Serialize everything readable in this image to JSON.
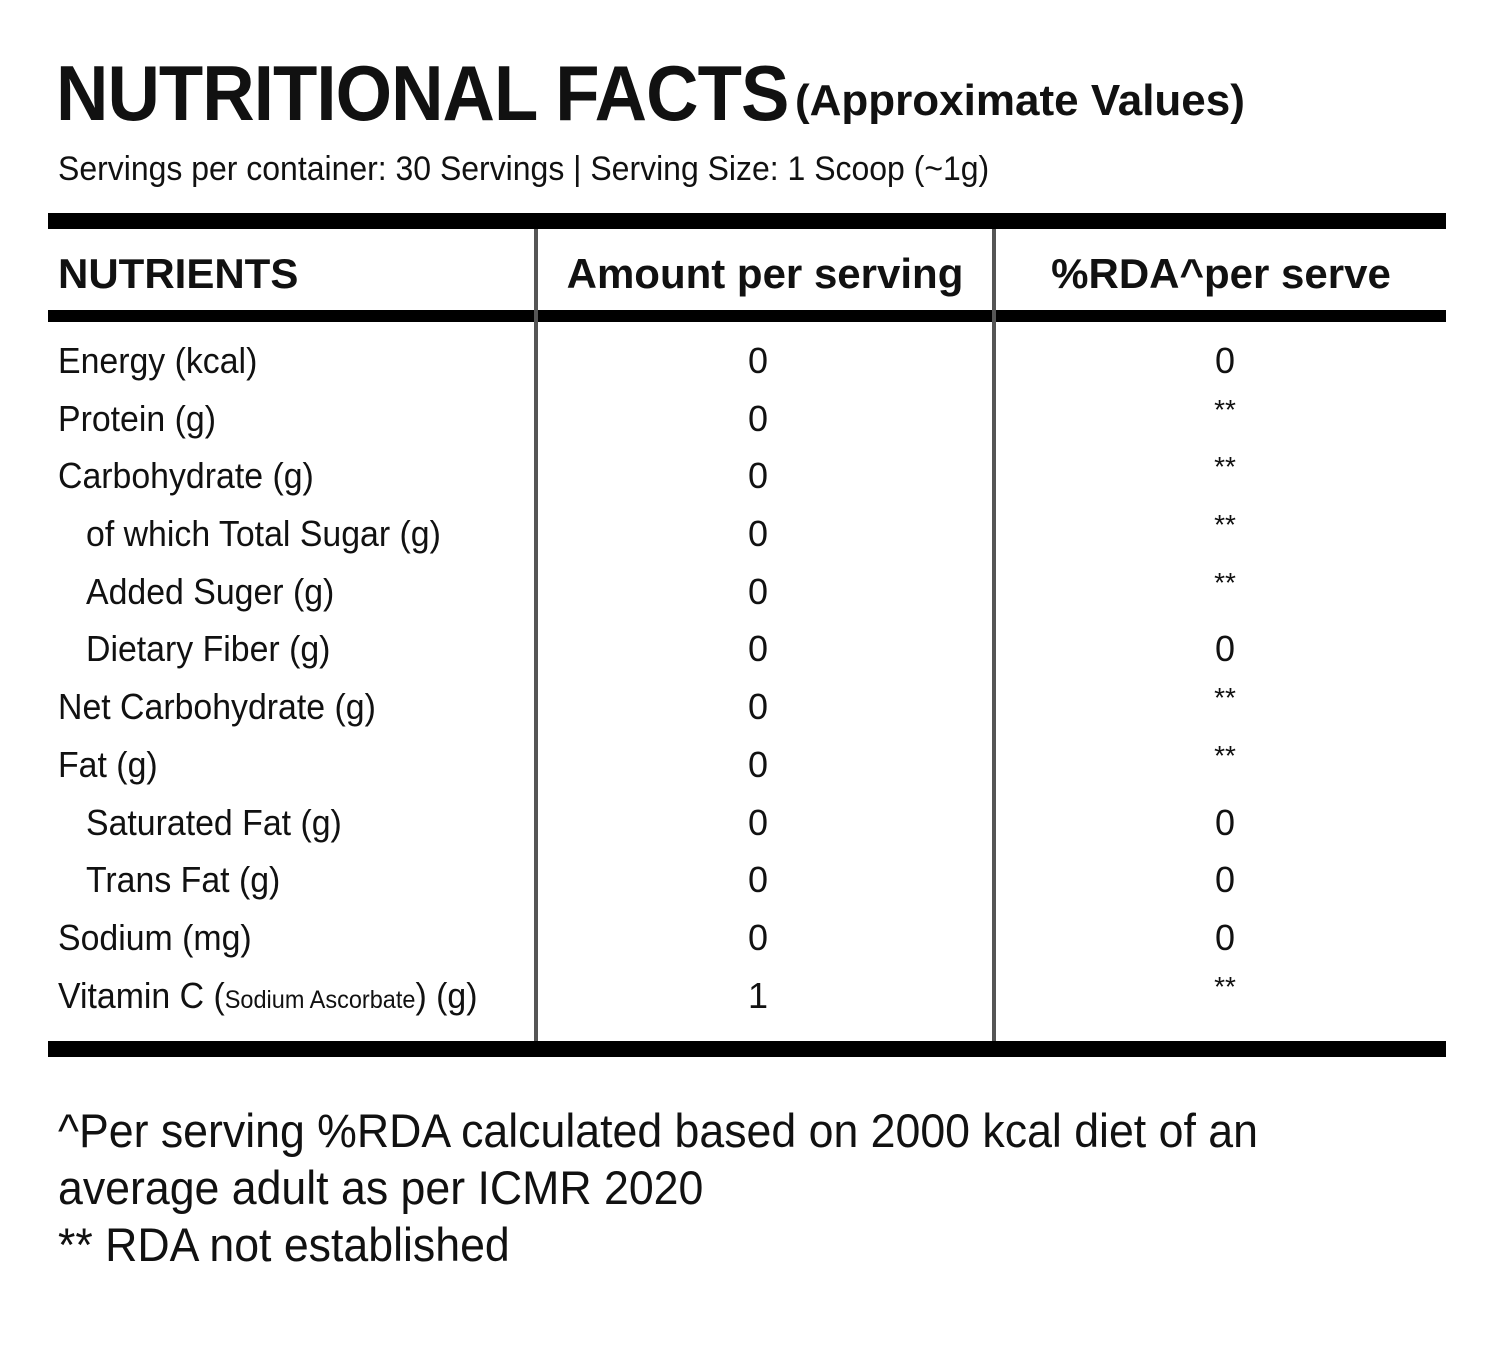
{
  "title": {
    "main": "NUTRITIONAL FACTS",
    "sub": "(Approximate Values)"
  },
  "servings_line": "Servings per container: 30 Servings | Serving Size: 1 Scoop (~1g)",
  "table": {
    "headers": {
      "nutrients": "NUTRIENTS",
      "amount": "Amount per serving",
      "rda": "%RDA^per serve"
    },
    "rows": [
      {
        "name": "Energy (kcal)",
        "indent": false,
        "amount": "0",
        "rda": "0"
      },
      {
        "name": "Protein (g)",
        "indent": false,
        "amount": "0",
        "rda": "**"
      },
      {
        "name": "Carbohydrate (g)",
        "indent": false,
        "amount": "0",
        "rda": "**"
      },
      {
        "name": "of which Total Sugar (g)",
        "indent": true,
        "amount": "0",
        "rda": "**"
      },
      {
        "name": "Added Suger (g)",
        "indent": true,
        "amount": "0",
        "rda": "**"
      },
      {
        "name": "Dietary Fiber (g)",
        "indent": true,
        "amount": "0",
        "rda": "0"
      },
      {
        "name": "Net Carbohydrate (g)",
        "indent": false,
        "amount": "0",
        "rda": "**"
      },
      {
        "name": "Fat (g)",
        "indent": false,
        "amount": "0",
        "rda": "**"
      },
      {
        "name": "Saturated Fat (g)",
        "indent": true,
        "amount": "0",
        "rda": "0"
      },
      {
        "name": "Trans Fat (g)",
        "indent": true,
        "amount": "0",
        "rda": "0"
      },
      {
        "name": "Sodium (mg)",
        "indent": false,
        "amount": "0",
        "rda": "0"
      },
      {
        "name": "Vitamin C (",
        "name_small": "Sodium Ascorbate",
        "name_suffix": ") (g)",
        "indent": false,
        "amount": "1",
        "rda": "**"
      }
    ]
  },
  "footnotes": {
    "line1": "^Per serving %RDA calculated based on 2000 kcal diet of an",
    "line2": "average adult as per ICMR 2020",
    "line3": "** RDA not established"
  }
}
